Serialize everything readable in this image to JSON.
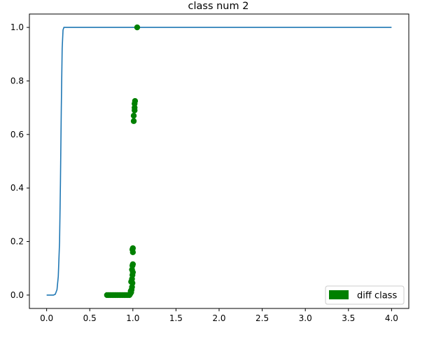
{
  "chart_data": {
    "type": "line",
    "title": "class num 2",
    "xlabel": "",
    "ylabel": "",
    "xlim": [
      -0.2,
      4.2
    ],
    "ylim": [
      -0.05,
      1.05
    ],
    "xticks": [
      "0.0",
      "0.5",
      "1.0",
      "1.5",
      "2.0",
      "2.5",
      "3.0",
      "3.5",
      "4.0"
    ],
    "yticks": [
      "0.0",
      "0.2",
      "0.4",
      "0.6",
      "0.8",
      "1.0"
    ],
    "grid": false,
    "legend": {
      "position": "lower-right",
      "entries": [
        "diff class"
      ]
    },
    "series": [
      {
        "kind": "line",
        "color": "#1f77b4",
        "x": [
          0.0,
          0.08,
          0.1,
          0.12,
          0.135,
          0.15,
          0.16,
          0.17,
          0.18,
          0.19,
          0.2,
          0.22,
          0.3,
          4.0
        ],
        "y": [
          0.0,
          0.0,
          0.003,
          0.02,
          0.07,
          0.2,
          0.42,
          0.7,
          0.92,
          0.99,
          1.0,
          1.0,
          1.0,
          1.0
        ]
      },
      {
        "kind": "scatter",
        "name": "diff class",
        "color": "#008000",
        "x": [
          0.7,
          0.72,
          0.74,
          0.76,
          0.78,
          0.8,
          0.82,
          0.84,
          0.86,
          0.88,
          0.9,
          0.92,
          0.94,
          0.96,
          0.97,
          0.98,
          0.985,
          0.99,
          0.995,
          0.975,
          0.98,
          0.99,
          0.995,
          1.0,
          0.99,
          0.995,
          1.0,
          1.0,
          0.995,
          1.0,
          1.01,
          1.01,
          1.02,
          1.02,
          1.02,
          1.025,
          1.05
        ],
        "y": [
          0.0,
          0.0,
          0.0,
          0.0,
          0.0,
          0.0,
          0.0,
          0.0,
          0.0,
          0.0,
          0.0,
          0.0,
          0.0,
          0.0,
          0.005,
          0.01,
          0.02,
          0.03,
          0.045,
          0.015,
          0.05,
          0.06,
          0.075,
          0.085,
          0.095,
          0.11,
          0.115,
          0.16,
          0.17,
          0.175,
          0.65,
          0.67,
          0.69,
          0.7,
          0.715,
          0.725,
          1.0
        ]
      }
    ]
  }
}
